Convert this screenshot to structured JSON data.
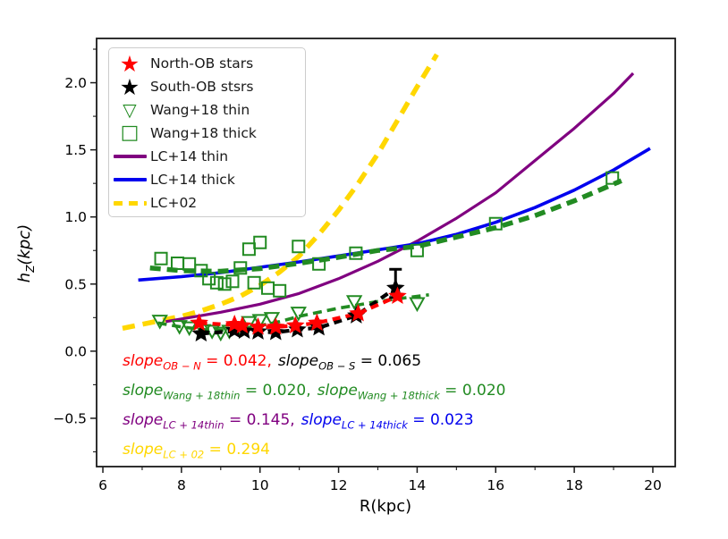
{
  "colors": {
    "red": "#ff0000",
    "black": "#000000",
    "green": "#228B22",
    "purple": "#800080",
    "blue": "#0000ee",
    "gold": "#FFD700",
    "frame": "#1a1a1a",
    "legend_text": "#1a1a1a"
  },
  "chart_data": {
    "type": "line+scatter",
    "title": "",
    "xlabel": "R(kpc)",
    "ylabel": "h_Z(kpc)",
    "ylabel_parts": {
      "main": "h",
      "sub": "Z",
      "rest": "(kpc)"
    },
    "xlim": [
      5.84,
      20.57
    ],
    "ylim": [
      -0.86,
      2.33
    ],
    "xticks": [
      6,
      8,
      10,
      12,
      14,
      16,
      18,
      20
    ],
    "xtick_labels": [
      "6",
      "8",
      "10",
      "12",
      "14",
      "16",
      "18",
      "20"
    ],
    "xticks_minor": [
      7,
      9,
      11,
      13,
      15,
      17,
      19
    ],
    "yticks": [
      -0.5,
      0.0,
      0.5,
      1.0,
      1.5,
      2.0
    ],
    "ytick_labels": [
      "−0.5",
      "0.0",
      "0.5",
      "1.0",
      "1.5",
      "2.0"
    ],
    "yticks_minor": [
      -0.75,
      -0.25,
      0.25,
      0.75,
      1.25,
      1.75,
      2.25
    ],
    "grid": false,
    "legend_position": "upper left",
    "series": [
      {
        "name": "LC+02",
        "kind": "line",
        "color": "gold",
        "lw": 5.5,
        "dash": [
          14,
          9
        ],
        "x": [
          6.5,
          7.0,
          7.5,
          8.0,
          8.5,
          9.0,
          9.5,
          10.0,
          10.5,
          11.0,
          11.5,
          12.0,
          12.5,
          13.0,
          13.5,
          14.0,
          14.5
        ],
        "y": [
          0.17,
          0.2,
          0.23,
          0.26,
          0.3,
          0.35,
          0.41,
          0.49,
          0.59,
          0.71,
          0.87,
          1.05,
          1.25,
          1.47,
          1.72,
          1.97,
          2.21
        ]
      },
      {
        "name": "LC+14 thin",
        "kind": "line",
        "color": "purple",
        "lw": 3.2,
        "dash": null,
        "x": [
          7.6,
          8.0,
          9.0,
          10.0,
          11.0,
          12.0,
          13.0,
          14.0,
          15.0,
          16.0,
          17.0,
          18.0,
          19.0,
          19.5
        ],
        "y": [
          0.22,
          0.24,
          0.29,
          0.35,
          0.43,
          0.54,
          0.67,
          0.82,
          0.99,
          1.18,
          1.42,
          1.66,
          1.92,
          2.07
        ]
      },
      {
        "name": "LC+14 thick",
        "kind": "line",
        "color": "blue",
        "lw": 3.6,
        "dash": null,
        "x": [
          6.9,
          8.0,
          9.0,
          10.0,
          11.0,
          12.0,
          13.0,
          14.0,
          15.0,
          16.0,
          17.0,
          18.0,
          19.0,
          19.93
        ],
        "y": [
          0.53,
          0.555,
          0.585,
          0.625,
          0.665,
          0.71,
          0.755,
          0.8,
          0.87,
          0.96,
          1.07,
          1.2,
          1.35,
          1.51
        ]
      },
      {
        "name": "Wang+18 thick fit",
        "kind": "line",
        "color": "green",
        "lw": 5.5,
        "dash": [
          12,
          7
        ],
        "x": [
          7.2,
          8.0,
          9.0,
          10.0,
          11.0,
          12.0,
          13.0,
          14.0,
          15.0,
          16.0,
          17.0,
          18.0,
          19.2
        ],
        "y": [
          0.62,
          0.6,
          0.595,
          0.615,
          0.655,
          0.7,
          0.75,
          0.78,
          0.85,
          0.92,
          1.01,
          1.12,
          1.27
        ]
      },
      {
        "name": "Wang+18 thin fit",
        "kind": "line",
        "color": "green",
        "lw": 3.6,
        "dash": [
          10,
          6
        ],
        "x": [
          7.4,
          8.0,
          8.6,
          9.0,
          9.5,
          10.0,
          10.5,
          11.0,
          11.5,
          12.0,
          12.5,
          13.0,
          13.5,
          14.3
        ],
        "y": [
          0.21,
          0.18,
          0.16,
          0.155,
          0.165,
          0.19,
          0.22,
          0.26,
          0.29,
          0.32,
          0.345,
          0.37,
          0.39,
          0.42
        ]
      },
      {
        "name": "Wang+18 thick",
        "kind": "scatter",
        "marker": "square-open",
        "color": "green",
        "ms": 13,
        "x": [
          7.48,
          7.9,
          8.2,
          8.5,
          8.7,
          8.9,
          9.1,
          9.3,
          9.5,
          9.72,
          10.0,
          9.85,
          10.2,
          10.5,
          10.98,
          11.5,
          12.44,
          14.0,
          16.0,
          18.97
        ],
        "y": [
          0.69,
          0.655,
          0.65,
          0.6,
          0.54,
          0.51,
          0.5,
          0.52,
          0.62,
          0.76,
          0.81,
          0.51,
          0.47,
          0.45,
          0.78,
          0.65,
          0.73,
          0.75,
          0.95,
          1.29
        ]
      },
      {
        "name": "Wang+18 thin",
        "kind": "scatter",
        "marker": "triangle-open",
        "color": "green",
        "ms": 15,
        "x": [
          7.45,
          7.95,
          8.2,
          8.55,
          8.78,
          9.0,
          9.22,
          9.5,
          9.72,
          10.0,
          10.3,
          10.98,
          12.4,
          14.0
        ],
        "y": [
          0.22,
          0.18,
          0.17,
          0.15,
          0.145,
          0.13,
          0.145,
          0.16,
          0.21,
          0.225,
          0.24,
          0.28,
          0.365,
          0.35
        ]
      },
      {
        "name": "South-OB fit",
        "kind": "line",
        "color": "black",
        "lw": 4.2,
        "dash": [
          9,
          6
        ],
        "x": [
          8.5,
          9.35,
          9.95,
          10.4,
          10.95,
          11.5,
          12.45,
          13.45
        ],
        "y": [
          0.13,
          0.15,
          0.145,
          0.14,
          0.16,
          0.175,
          0.265,
          0.47
        ]
      },
      {
        "name": "North-OB fit",
        "kind": "line",
        "color": "red",
        "lw": 4.2,
        "dash": [
          9,
          6
        ],
        "x": [
          8.45,
          9.35,
          9.95,
          10.4,
          10.9,
          11.45,
          12.5,
          13.5
        ],
        "y": [
          0.21,
          0.195,
          0.18,
          0.18,
          0.19,
          0.21,
          0.28,
          0.41
        ]
      },
      {
        "name": "South-OB errorbar",
        "kind": "errorbar",
        "color": "black",
        "lw": 3,
        "cap": 7,
        "x": [
          13.45
        ],
        "y1": [
          0.4
        ],
        "y2": [
          0.61
        ]
      },
      {
        "name": "South-OB stsrs",
        "kind": "scatter",
        "marker": "star",
        "color": "black",
        "ms": 9.5,
        "x": [
          8.5,
          9.35,
          9.6,
          9.95,
          10.4,
          10.95,
          11.5,
          12.45,
          13.45
        ],
        "y": [
          0.13,
          0.155,
          0.15,
          0.145,
          0.14,
          0.16,
          0.175,
          0.265,
          0.47
        ]
      },
      {
        "name": "North-OB stars",
        "kind": "scatter",
        "marker": "star",
        "color": "red",
        "ms": 9.5,
        "x": [
          8.45,
          9.35,
          9.55,
          9.95,
          10.4,
          10.9,
          11.45,
          12.5,
          13.5
        ],
        "y": [
          0.21,
          0.2,
          0.19,
          0.18,
          0.18,
          0.19,
          0.21,
          0.28,
          0.41
        ]
      }
    ]
  },
  "legend": {
    "items": [
      {
        "label": "North-OB stars",
        "marker": "star",
        "color": "red"
      },
      {
        "label": "South-OB stsrs",
        "marker": "star",
        "color": "black"
      },
      {
        "label": "Wang+18 thin",
        "marker": "triangle",
        "color": "green"
      },
      {
        "label": "Wang+18 thick",
        "marker": "square",
        "color": "green"
      },
      {
        "label": "LC+14 thin",
        "marker": "line",
        "color": "purple"
      },
      {
        "label": "LC+14 thick",
        "marker": "line",
        "color": "blue"
      },
      {
        "label": "LC+02",
        "marker": "dashed-line",
        "color": "gold"
      }
    ]
  },
  "annotations": {
    "line1": {
      "p1": {
        "f": "slope",
        "s": "OB − N",
        "v": " = 0.042,",
        "color": "red"
      },
      "p2": {
        "f": "slope",
        "s": "OB − S",
        "v": " = 0.065",
        "color": "black"
      }
    },
    "line2": {
      "p1": {
        "f": "slope",
        "s": "Wang + 18thin",
        "v": " = 0.020,",
        "color": "green"
      },
      "p2": {
        "f": "slope",
        "s": "Wang + 18thick",
        "v": " = 0.020",
        "color": "green"
      }
    },
    "line3": {
      "p1": {
        "f": "slope",
        "s": "LC + 14thin",
        "v": " = 0.145,",
        "color": "purple"
      },
      "p2": {
        "f": "slope",
        "s": "LC + 14thick",
        "v": " = 0.023",
        "color": "blue"
      }
    },
    "line4": {
      "p1": {
        "f": "slope",
        "s": "LC + 02",
        "v": " = 0.294",
        "color": "gold"
      }
    }
  }
}
